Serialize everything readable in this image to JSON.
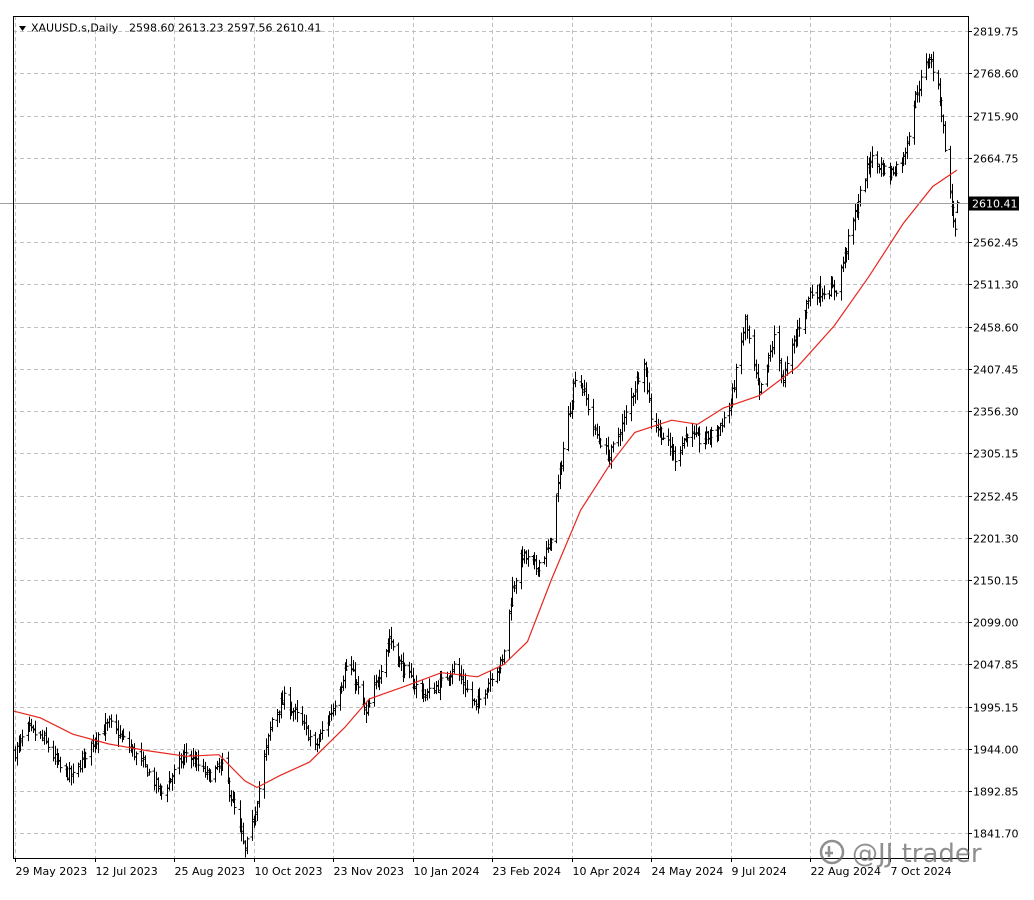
{
  "header": {
    "symbol_label": "XAUUSD.s,Daily",
    "ohlc": "2598.60 2613.23 2597.56 2610.41",
    "dropdown_icon": "triangle-down-icon"
  },
  "watermark": {
    "text": "@JJ trader",
    "icon": "zhihu-logo-icon"
  },
  "chart_data": {
    "type": "ohlc-bar",
    "symbol": "XAUUSD.s",
    "timeframe": "Daily",
    "last_price": 2610.41,
    "last_price_label": "2610.41",
    "ylim": [
      1811.0,
      2838.0
    ],
    "grid": true,
    "y_ticks": [
      "2819.75",
      "2768.60",
      "2715.90",
      "2664.75",
      "2610.41",
      "2562.45",
      "2511.30",
      "2458.60",
      "2407.45",
      "2356.30",
      "2305.15",
      "2252.45",
      "2201.30",
      "2150.15",
      "2099.00",
      "2047.85",
      "1995.15",
      "1944.00",
      "1892.85",
      "1841.70"
    ],
    "y_tick_values": [
      2819.75,
      2768.6,
      2715.9,
      2664.75,
      2610.41,
      2562.45,
      2511.3,
      2458.6,
      2407.45,
      2356.3,
      2305.15,
      2252.45,
      2201.3,
      2150.15,
      2099.0,
      2047.85,
      1995.15,
      1944.0,
      1892.85,
      1841.7
    ],
    "x_tick_labels": [
      "29 May 2023",
      "12 Jul 2023",
      "25 Aug 2023",
      "10 Oct 2023",
      "23 Nov 2023",
      "10 Jan 2024",
      "23 Feb 2024",
      "10 Apr 2024",
      "24 May 2024",
      "9 Jul 2024",
      "22 Aug 2024",
      "7 Oct 2024"
    ],
    "x_tick_dates": [
      "2023-05-29",
      "2023-07-12",
      "2023-08-25",
      "2023-10-10",
      "2023-11-23",
      "2024-01-10",
      "2024-02-23",
      "2024-04-10",
      "2024-05-24",
      "2024-07-09",
      "2024-08-22",
      "2024-10-07"
    ],
    "close_anchors": [
      {
        "date": "2023-05-29",
        "close": 1940
      },
      {
        "date": "2023-06-05",
        "close": 1968
      },
      {
        "date": "2023-06-14",
        "close": 1955
      },
      {
        "date": "2023-06-23",
        "close": 1920
      },
      {
        "date": "2023-06-30",
        "close": 1910
      },
      {
        "date": "2023-07-12",
        "close": 1957
      },
      {
        "date": "2023-07-20",
        "close": 1975
      },
      {
        "date": "2023-07-28",
        "close": 1955
      },
      {
        "date": "2023-08-08",
        "close": 1925
      },
      {
        "date": "2023-08-18",
        "close": 1890
      },
      {
        "date": "2023-08-25",
        "close": 1915
      },
      {
        "date": "2023-09-01",
        "close": 1940
      },
      {
        "date": "2023-09-14",
        "close": 1910
      },
      {
        "date": "2023-09-22",
        "close": 1925
      },
      {
        "date": "2023-09-29",
        "close": 1870
      },
      {
        "date": "2023-10-05",
        "close": 1820
      },
      {
        "date": "2023-10-10",
        "close": 1860
      },
      {
        "date": "2023-10-20",
        "close": 1980
      },
      {
        "date": "2023-10-27",
        "close": 2005
      },
      {
        "date": "2023-11-06",
        "close": 1975
      },
      {
        "date": "2023-11-13",
        "close": 1945
      },
      {
        "date": "2023-11-23",
        "close": 1995
      },
      {
        "date": "2023-12-01",
        "close": 2045
      },
      {
        "date": "2023-12-04",
        "close": 2040
      },
      {
        "date": "2023-12-13",
        "close": 1985
      },
      {
        "date": "2023-12-20",
        "close": 2030
      },
      {
        "date": "2023-12-27",
        "close": 2080
      },
      {
        "date": "2024-01-03",
        "close": 2045
      },
      {
        "date": "2024-01-10",
        "close": 2025
      },
      {
        "date": "2024-01-17",
        "close": 2010
      },
      {
        "date": "2024-01-26",
        "close": 2025
      },
      {
        "date": "2024-02-02",
        "close": 2045
      },
      {
        "date": "2024-02-14",
        "close": 1995
      },
      {
        "date": "2024-02-23",
        "close": 2035
      },
      {
        "date": "2024-02-29",
        "close": 2050
      },
      {
        "date": "2024-03-06",
        "close": 2140
      },
      {
        "date": "2024-03-12",
        "close": 2180
      },
      {
        "date": "2024-03-20",
        "close": 2165
      },
      {
        "date": "2024-03-28",
        "close": 2190
      },
      {
        "date": "2024-04-05",
        "close": 2310
      },
      {
        "date": "2024-04-12",
        "close": 2400
      },
      {
        "date": "2024-04-16",
        "close": 2385
      },
      {
        "date": "2024-04-23",
        "close": 2330
      },
      {
        "date": "2024-05-01",
        "close": 2300
      },
      {
        "date": "2024-05-09",
        "close": 2345
      },
      {
        "date": "2024-05-20",
        "close": 2420
      },
      {
        "date": "2024-05-24",
        "close": 2350
      },
      {
        "date": "2024-06-07",
        "close": 2300
      },
      {
        "date": "2024-06-14",
        "close": 2330
      },
      {
        "date": "2024-06-21",
        "close": 2320
      },
      {
        "date": "2024-07-01",
        "close": 2330
      },
      {
        "date": "2024-07-09",
        "close": 2365
      },
      {
        "date": "2024-07-17",
        "close": 2465
      },
      {
        "date": "2024-07-25",
        "close": 2375
      },
      {
        "date": "2024-08-02",
        "close": 2445
      },
      {
        "date": "2024-08-07",
        "close": 2395
      },
      {
        "date": "2024-08-15",
        "close": 2455
      },
      {
        "date": "2024-08-22",
        "close": 2500
      },
      {
        "date": "2024-09-06",
        "close": 2505
      },
      {
        "date": "2024-09-12",
        "close": 2555
      },
      {
        "date": "2024-09-20",
        "close": 2620
      },
      {
        "date": "2024-09-26",
        "close": 2665
      },
      {
        "date": "2024-10-07",
        "close": 2645
      },
      {
        "date": "2024-10-15",
        "close": 2665
      },
      {
        "date": "2024-10-22",
        "close": 2740
      },
      {
        "date": "2024-10-30",
        "close": 2790
      },
      {
        "date": "2024-11-05",
        "close": 2740
      },
      {
        "date": "2024-11-11",
        "close": 2620
      },
      {
        "date": "2024-11-14",
        "close": 2575
      },
      {
        "date": "2024-11-15",
        "close": 2610
      }
    ],
    "moving_average": {
      "color": "#e8261e",
      "points": [
        {
          "date": "2023-05-29",
          "value": 1990
        },
        {
          "date": "2023-06-12",
          "value": 1982
        },
        {
          "date": "2023-06-30",
          "value": 1962
        },
        {
          "date": "2023-07-20",
          "value": 1950
        },
        {
          "date": "2023-08-10",
          "value": 1942
        },
        {
          "date": "2023-09-01",
          "value": 1935
        },
        {
          "date": "2023-09-20",
          "value": 1937
        },
        {
          "date": "2023-10-05",
          "value": 1905
        },
        {
          "date": "2023-10-12",
          "value": 1897
        },
        {
          "date": "2023-10-25",
          "value": 1912
        },
        {
          "date": "2023-11-10",
          "value": 1928
        },
        {
          "date": "2023-11-30",
          "value": 1970
        },
        {
          "date": "2023-12-15",
          "value": 2005
        },
        {
          "date": "2024-01-05",
          "value": 2020
        },
        {
          "date": "2024-01-26",
          "value": 2037
        },
        {
          "date": "2024-02-15",
          "value": 2032
        },
        {
          "date": "2024-03-01",
          "value": 2047
        },
        {
          "date": "2024-03-15",
          "value": 2075
        },
        {
          "date": "2024-03-29",
          "value": 2150
        },
        {
          "date": "2024-04-15",
          "value": 2235
        },
        {
          "date": "2024-05-01",
          "value": 2290
        },
        {
          "date": "2024-05-15",
          "value": 2330
        },
        {
          "date": "2024-06-05",
          "value": 2345
        },
        {
          "date": "2024-06-20",
          "value": 2340
        },
        {
          "date": "2024-07-05",
          "value": 2360
        },
        {
          "date": "2024-07-25",
          "value": 2375
        },
        {
          "date": "2024-08-15",
          "value": 2410
        },
        {
          "date": "2024-09-05",
          "value": 2460
        },
        {
          "date": "2024-09-25",
          "value": 2520
        },
        {
          "date": "2024-10-15",
          "value": 2585
        },
        {
          "date": "2024-11-01",
          "value": 2630
        },
        {
          "date": "2024-11-15",
          "value": 2650
        }
      ]
    },
    "bar_color": "#000000",
    "grid_color": "#c0c0c0"
  }
}
